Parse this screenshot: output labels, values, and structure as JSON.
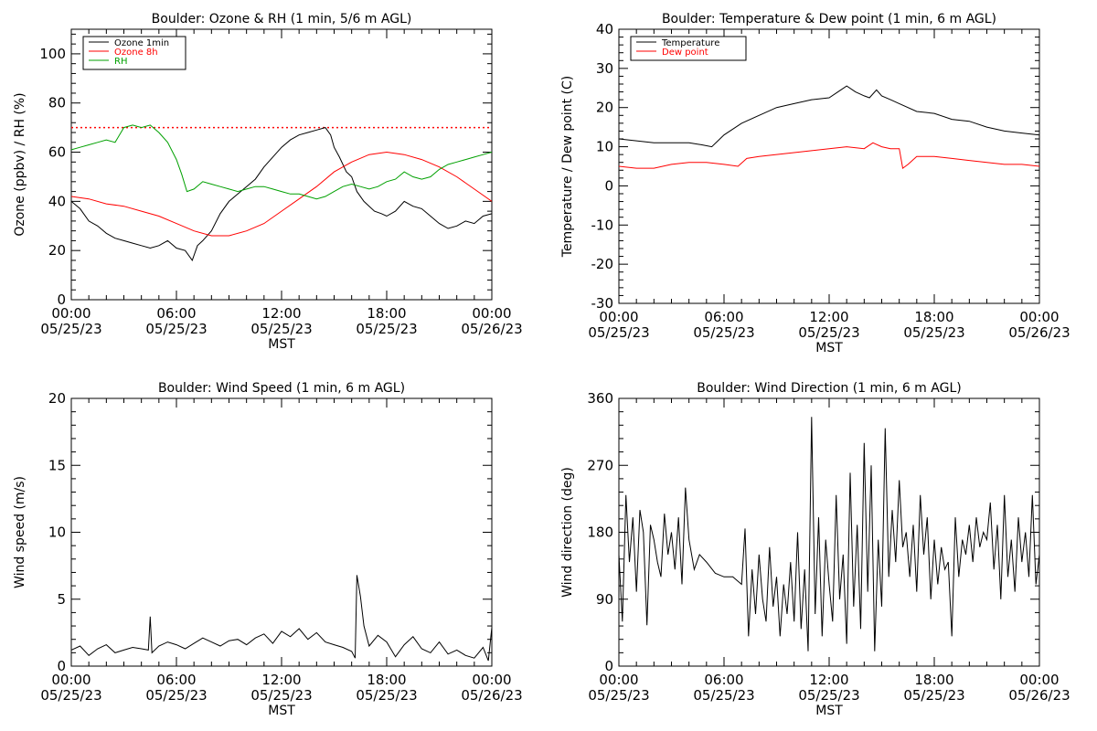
{
  "chart_data": [
    {
      "id": "ozone",
      "type": "line",
      "title": "Boulder: Ozone & RH (1 min, 5/6 m AGL)",
      "xlabel": "MST",
      "ylabel": "Ozone (ppbv) / RH (%)",
      "ylim": [
        0,
        110
      ],
      "yticks": [
        0,
        20,
        40,
        60,
        80,
        100
      ],
      "xlim_hours": [
        0,
        24
      ],
      "xtick_hours": [
        0,
        6,
        12,
        18,
        24
      ],
      "xtick_labels": [
        [
          "00:00",
          "05/25/23"
        ],
        [
          "06:00",
          "05/25/23"
        ],
        [
          "12:00",
          "05/25/23"
        ],
        [
          "18:00",
          "05/25/23"
        ],
        [
          "00:00",
          "05/26/23"
        ]
      ],
      "legend_position": "top-left",
      "reference_line": {
        "y": 70,
        "color": "#ff0000",
        "style": "dotted"
      },
      "series": [
        {
          "name": "Ozone 1min",
          "color": "#000000",
          "x": [
            0,
            0.5,
            1,
            1.5,
            2,
            2.5,
            3,
            3.5,
            4,
            4.5,
            5,
            5.5,
            6,
            6.5,
            6.9,
            7.2,
            7.5,
            8,
            8.5,
            9,
            9.5,
            10,
            10.5,
            11,
            11.5,
            12,
            12.5,
            13,
            13.5,
            14,
            14.5,
            14.8,
            15,
            15.3,
            15.7,
            16,
            16.3,
            16.7,
            17,
            17.3,
            17.7,
            18,
            18.5,
            19,
            19.5,
            20,
            20.5,
            21,
            21.5,
            22,
            22.5,
            23,
            23.5,
            24
          ],
          "y": [
            40,
            37,
            32,
            30,
            27,
            25,
            24,
            23,
            22,
            21,
            22,
            24,
            21,
            20,
            16,
            22,
            24,
            28,
            35,
            40,
            43,
            46,
            49,
            54,
            58,
            62,
            65,
            67,
            68,
            69,
            70,
            67,
            62,
            58,
            52,
            50,
            44,
            40,
            38,
            36,
            35,
            34,
            36,
            40,
            38,
            37,
            34,
            31,
            29,
            30,
            32,
            31,
            34,
            35
          ]
        },
        {
          "name": "Ozone 8h",
          "color": "#ff0000",
          "x": [
            0,
            1,
            2,
            3,
            4,
            5,
            6,
            7,
            8,
            9,
            10,
            11,
            12,
            13,
            14,
            15,
            16,
            17,
            18,
            19,
            20,
            21,
            22,
            23,
            24
          ],
          "y": [
            42,
            41,
            39,
            38,
            36,
            34,
            31,
            28,
            26,
            26,
            28,
            31,
            36,
            41,
            46,
            52,
            56,
            59,
            60,
            59,
            57,
            54,
            50,
            45,
            40
          ]
        },
        {
          "name": "RH",
          "color": "#00a000",
          "x": [
            0,
            0.5,
            1,
            1.5,
            2,
            2.5,
            3,
            3.5,
            4,
            4.5,
            5,
            5.5,
            6,
            6.3,
            6.6,
            7,
            7.5,
            8,
            8.5,
            9,
            9.5,
            10,
            10.5,
            11,
            11.5,
            12,
            12.5,
            13,
            13.5,
            14,
            14.5,
            15,
            15.5,
            16,
            16.5,
            17,
            17.5,
            18,
            18.5,
            19,
            19.5,
            20,
            20.5,
            21,
            21.5,
            22,
            22.5,
            23,
            23.5,
            24
          ],
          "y": [
            61,
            62,
            63,
            64,
            65,
            64,
            70,
            71,
            70,
            71,
            68,
            64,
            57,
            51,
            44,
            45,
            48,
            47,
            46,
            45,
            44,
            45,
            46,
            46,
            45,
            44,
            43,
            43,
            42,
            41,
            42,
            44,
            46,
            47,
            46,
            45,
            46,
            48,
            49,
            52,
            50,
            49,
            50,
            53,
            55,
            56,
            57,
            58,
            59,
            60
          ]
        }
      ]
    },
    {
      "id": "temp",
      "type": "line",
      "title": "Boulder: Temperature & Dew point (1 min, 6 m AGL)",
      "xlabel": "MST",
      "ylabel": "Temperature / Dew point (C)",
      "ylim": [
        -30,
        40
      ],
      "yticks": [
        -30,
        -20,
        -10,
        0,
        10,
        20,
        30,
        40
      ],
      "xlim_hours": [
        0,
        24
      ],
      "xtick_hours": [
        0,
        6,
        12,
        18,
        24
      ],
      "xtick_labels": [
        [
          "00:00",
          "05/25/23"
        ],
        [
          "06:00",
          "05/25/23"
        ],
        [
          "12:00",
          "05/25/23"
        ],
        [
          "18:00",
          "05/25/23"
        ],
        [
          "00:00",
          "05/26/23"
        ]
      ],
      "legend_position": "top-left",
      "series": [
        {
          "name": "Temperature",
          "color": "#000000",
          "x": [
            0,
            1,
            2,
            3,
            4,
            4.7,
            5.3,
            6,
            7,
            8,
            9,
            10,
            11,
            12,
            12.5,
            13,
            13.5,
            14,
            14.3,
            14.7,
            15,
            15.5,
            16,
            17,
            18,
            19,
            20,
            21,
            22,
            23,
            24
          ],
          "y": [
            12,
            11.5,
            11,
            11,
            11,
            10.5,
            10,
            13,
            16,
            18,
            20,
            21,
            22,
            22.5,
            24,
            25.5,
            24,
            23,
            22.5,
            24.5,
            23,
            22,
            21,
            19,
            18.5,
            17,
            16.5,
            15,
            14,
            13.5,
            13
          ]
        },
        {
          "name": "Dew point",
          "color": "#ff0000",
          "x": [
            0,
            1,
            2,
            3,
            4,
            5,
            6,
            6.8,
            7.3,
            8,
            9,
            10,
            11,
            12,
            13,
            14,
            14.5,
            15,
            15.5,
            16,
            16.2,
            16.5,
            17,
            18,
            19,
            20,
            21,
            22,
            23,
            24
          ],
          "y": [
            5,
            4.5,
            4.5,
            5.5,
            6,
            6,
            5.5,
            5,
            7,
            7.5,
            8,
            8.5,
            9,
            9.5,
            10,
            9.5,
            11,
            10,
            9.5,
            9.5,
            4.5,
            5.5,
            7.5,
            7.5,
            7,
            6.5,
            6,
            5.5,
            5.5,
            5
          ]
        }
      ]
    },
    {
      "id": "wspd",
      "type": "line",
      "title": "Boulder: Wind Speed (1 min, 6 m AGL)",
      "xlabel": "MST",
      "ylabel": "Wind speed (m/s)",
      "ylim": [
        0,
        20
      ],
      "yticks": [
        0,
        5,
        10,
        15,
        20
      ],
      "xlim_hours": [
        0,
        24
      ],
      "xtick_hours": [
        0,
        6,
        12,
        18,
        24
      ],
      "xtick_labels": [
        [
          "00:00",
          "05/25/23"
        ],
        [
          "06:00",
          "05/25/23"
        ],
        [
          "12:00",
          "05/25/23"
        ],
        [
          "18:00",
          "05/25/23"
        ],
        [
          "00:00",
          "05/26/23"
        ]
      ],
      "series": [
        {
          "name": "",
          "color": "#000000",
          "x": [
            0,
            0.5,
            1,
            1.5,
            2,
            2.5,
            3,
            3.5,
            4,
            4.4,
            4.5,
            4.6,
            5,
            5.5,
            6,
            6.5,
            7,
            7.5,
            8,
            8.5,
            9,
            9.5,
            10,
            10.5,
            11,
            11.5,
            12,
            12.5,
            13,
            13.5,
            14,
            14.5,
            15,
            15.5,
            16,
            16.2,
            16.3,
            16.5,
            16.7,
            17,
            17.5,
            18,
            18.5,
            19,
            19.5,
            20,
            20.5,
            21,
            21.5,
            22,
            22.5,
            23,
            23.5,
            23.8,
            24
          ],
          "y": [
            1.2,
            1.5,
            0.8,
            1.3,
            1.6,
            1.0,
            1.2,
            1.4,
            1.3,
            1.2,
            3.7,
            1.0,
            1.5,
            1.8,
            1.6,
            1.3,
            1.7,
            2.1,
            1.8,
            1.5,
            1.9,
            2.0,
            1.6,
            2.1,
            2.4,
            1.7,
            2.6,
            2.2,
            2.8,
            2.0,
            2.5,
            1.8,
            1.6,
            1.4,
            1.1,
            0.6,
            6.8,
            5.2,
            3.0,
            1.5,
            2.3,
            1.8,
            0.7,
            1.6,
            2.2,
            1.3,
            1.0,
            1.8,
            0.9,
            1.2,
            0.8,
            0.6,
            1.4,
            0.4,
            2.9
          ]
        }
      ]
    },
    {
      "id": "wdir",
      "type": "line",
      "title": "Boulder: Wind Direction (1 min, 6 m AGL)",
      "xlabel": "MST",
      "ylabel": "Wind direction (deg)",
      "ylim": [
        0,
        360
      ],
      "yticks": [
        0,
        90,
        180,
        270,
        360
      ],
      "xlim_hours": [
        0,
        24
      ],
      "xtick_hours": [
        0,
        6,
        12,
        18,
        24
      ],
      "xtick_labels": [
        [
          "00:00",
          "05/25/23"
        ],
        [
          "06:00",
          "05/25/23"
        ],
        [
          "12:00",
          "05/25/23"
        ],
        [
          "18:00",
          "05/25/23"
        ],
        [
          "00:00",
          "05/26/23"
        ]
      ],
      "series": [
        {
          "name": "",
          "color": "#000000",
          "x": [
            0,
            0.2,
            0.4,
            0.6,
            0.8,
            1,
            1.2,
            1.4,
            1.6,
            1.8,
            2,
            2.2,
            2.4,
            2.6,
            2.8,
            3,
            3.2,
            3.4,
            3.6,
            3.8,
            4,
            4.3,
            4.6,
            5,
            5.5,
            6,
            6.5,
            7,
            7.2,
            7.4,
            7.6,
            7.8,
            8,
            8.2,
            8.4,
            8.6,
            8.8,
            9,
            9.2,
            9.4,
            9.6,
            9.8,
            10,
            10.2,
            10.4,
            10.6,
            10.8,
            11,
            11.2,
            11.4,
            11.6,
            11.8,
            12,
            12.2,
            12.4,
            12.6,
            12.8,
            13,
            13.2,
            13.4,
            13.6,
            13.8,
            14,
            14.2,
            14.4,
            14.6,
            14.8,
            15,
            15.2,
            15.4,
            15.6,
            15.8,
            16,
            16.2,
            16.4,
            16.6,
            16.8,
            17,
            17.2,
            17.4,
            17.6,
            17.8,
            18,
            18.2,
            18.4,
            18.6,
            18.8,
            19,
            19.2,
            19.4,
            19.6,
            19.8,
            20,
            20.2,
            20.4,
            20.6,
            20.8,
            21,
            21.2,
            21.4,
            21.6,
            21.8,
            22,
            22.2,
            22.4,
            22.6,
            22.8,
            23,
            23.2,
            23.4,
            23.6,
            23.8,
            24
          ],
          "y": [
            150,
            60,
            230,
            140,
            200,
            100,
            210,
            180,
            55,
            190,
            170,
            140,
            120,
            205,
            150,
            180,
            130,
            200,
            110,
            240,
            170,
            130,
            150,
            140,
            125,
            120,
            120,
            110,
            185,
            40,
            130,
            70,
            150,
            90,
            60,
            160,
            80,
            120,
            40,
            110,
            70,
            140,
            60,
            180,
            50,
            130,
            20,
            335,
            70,
            200,
            40,
            170,
            110,
            60,
            230,
            90,
            150,
            30,
            260,
            80,
            190,
            50,
            300,
            100,
            270,
            20,
            170,
            80,
            320,
            120,
            210,
            140,
            250,
            160,
            180,
            120,
            190,
            100,
            230,
            150,
            200,
            90,
            170,
            110,
            160,
            130,
            140,
            40,
            200,
            120,
            170,
            150,
            190,
            140,
            200,
            160,
            180,
            170,
            220,
            130,
            190,
            90,
            230,
            120,
            170,
            100,
            200,
            140,
            180,
            120,
            230,
            110,
            150
          ]
        }
      ]
    }
  ]
}
